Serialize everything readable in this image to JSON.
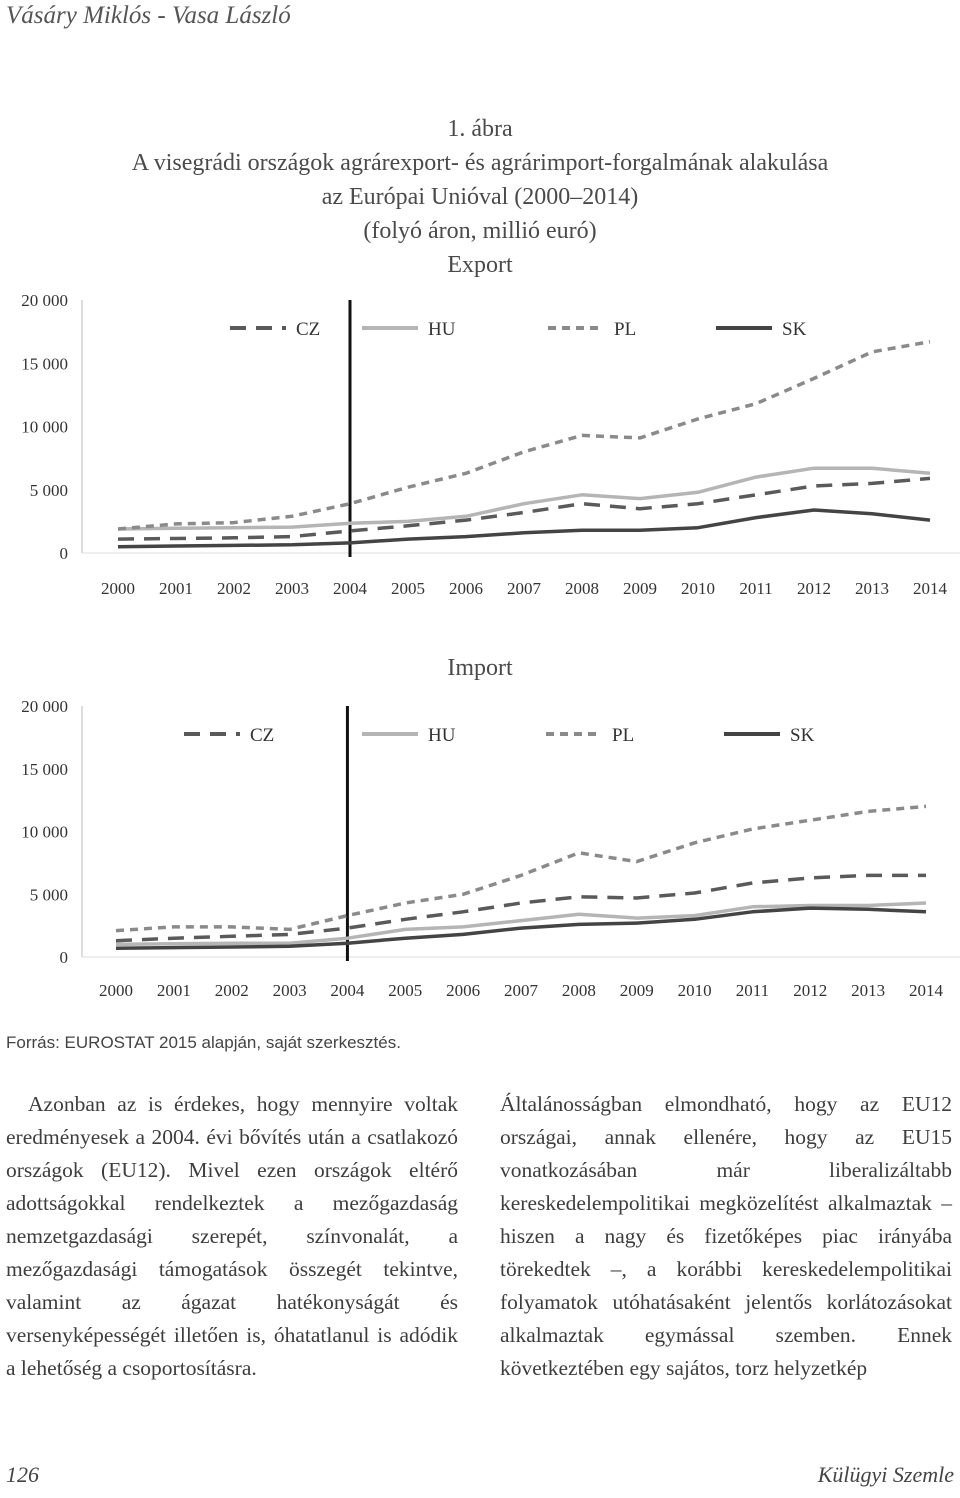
{
  "header": {
    "running_head": "Vásáry Miklós - Vasa László"
  },
  "figure": {
    "number": "1. ábra",
    "title_line1": "A visegrádi országok agrárexport- és agrárimport-forgalmának alakulása",
    "title_line2": "az Európai Unióval (2000–2014)",
    "subtitle": "(folyó áron, millió euró)"
  },
  "chart_data": [
    {
      "type": "line",
      "title": "Export",
      "x": [
        "2000",
        "2001",
        "2002",
        "2003",
        "2004",
        "2005",
        "2006",
        "2007",
        "2008",
        "2009",
        "2010",
        "2011",
        "2012",
        "2013",
        "2014"
      ],
      "ylim": [
        0,
        20000
      ],
      "yticks": [
        "0",
        "5 000",
        "10 000",
        "15 000",
        "20 000"
      ],
      "ytick_values": [
        0,
        5000,
        10000,
        15000,
        20000
      ],
      "marker_year": "2004",
      "legend": "top",
      "grid": false,
      "series": [
        {
          "name": "CZ",
          "style": "dashed",
          "color": "#5a5a5a",
          "values": [
            1100,
            1150,
            1200,
            1300,
            1750,
            2150,
            2600,
            3200,
            3900,
            3500,
            3900,
            4600,
            5300,
            5500,
            5900
          ]
        },
        {
          "name": "HU",
          "style": "solid",
          "color": "#b5b5b5",
          "values": [
            1900,
            1950,
            2000,
            2050,
            2350,
            2500,
            2900,
            3900,
            4600,
            4300,
            4800,
            6000,
            6700,
            6700,
            6300
          ]
        },
        {
          "name": "PL",
          "style": "dotted",
          "color": "#8a8a8a",
          "values": [
            1900,
            2300,
            2400,
            2900,
            3900,
            5200,
            6300,
            8000,
            9300,
            9100,
            10600,
            11800,
            13800,
            15900,
            16700
          ]
        },
        {
          "name": "SK",
          "style": "solid",
          "color": "#444444",
          "values": [
            500,
            550,
            600,
            650,
            800,
            1100,
            1300,
            1600,
            1800,
            1800,
            2000,
            2800,
            3400,
            3100,
            2600
          ]
        }
      ]
    },
    {
      "type": "line",
      "title": "Import",
      "x": [
        "2000",
        "2001",
        "2002",
        "2003",
        "2004",
        "2005",
        "2006",
        "2007",
        "2008",
        "2009",
        "2010",
        "2011",
        "2012",
        "2013",
        "2014"
      ],
      "ylim": [
        0,
        20000
      ],
      "yticks": [
        "0",
        "5 000",
        "10 000",
        "15 000",
        "20 000"
      ],
      "ytick_values": [
        0,
        5000,
        10000,
        15000,
        20000
      ],
      "marker_year": "2004",
      "legend": "top",
      "grid": false,
      "series": [
        {
          "name": "CZ",
          "style": "dashed",
          "color": "#5a5a5a",
          "values": [
            1300,
            1500,
            1650,
            1800,
            2300,
            3000,
            3600,
            4300,
            4800,
            4700,
            5100,
            5900,
            6300,
            6500,
            6500
          ]
        },
        {
          "name": "HU",
          "style": "solid",
          "color": "#b5b5b5",
          "values": [
            1000,
            1050,
            1100,
            1100,
            1500,
            2200,
            2400,
            2900,
            3400,
            3100,
            3300,
            4000,
            4100,
            4100,
            4300
          ]
        },
        {
          "name": "PL",
          "style": "dotted",
          "color": "#8a8a8a",
          "values": [
            2100,
            2400,
            2400,
            2200,
            3300,
            4300,
            5000,
            6500,
            8300,
            7600,
            9100,
            10200,
            10900,
            11600,
            12000
          ]
        },
        {
          "name": "SK",
          "style": "solid",
          "color": "#444444",
          "values": [
            700,
            750,
            800,
            850,
            1100,
            1500,
            1800,
            2300,
            2600,
            2700,
            3000,
            3600,
            3900,
            3800,
            3600
          ]
        }
      ]
    }
  ],
  "source": "Forrás: EUROSTAT 2015 alapján, saját szerkesztés.",
  "body": {
    "left_column": "Azonban az is érdekes, hogy mennyire voltak eredményesek a 2004. évi bővítés után a csatlakozó országok (EU12). Mivel ezen országok eltérő adottságokkal rendelkeztek a mezőgazdaság nemzetgazdasági szerepét, színvonalát, a mezőgazdasági támogatások összegét tekintve, valamint az ágazat hatékonyságát és versenyképességét illetően is, óhatatlanul is adódik a lehetőség a csoportosításra.",
    "right_column": "Általánosságban elmondható, hogy az EU12 országai, annak ellenére, hogy az EU15 vonatkozásában már liberalizáltabb kereskedelempolitikai megközelítést alkalmaztak – hiszen a nagy és fizetőképes piac irányába törekedtek –, a korábbi kereskedelempolitikai folyamatok utóhatásaként jelentős korlátozásokat alkalmaztak egymással szemben. Ennek következtében egy sajátos, torz helyzetkép"
  },
  "footer": {
    "page_number": "126",
    "journal": "Külügyi Szemle"
  }
}
